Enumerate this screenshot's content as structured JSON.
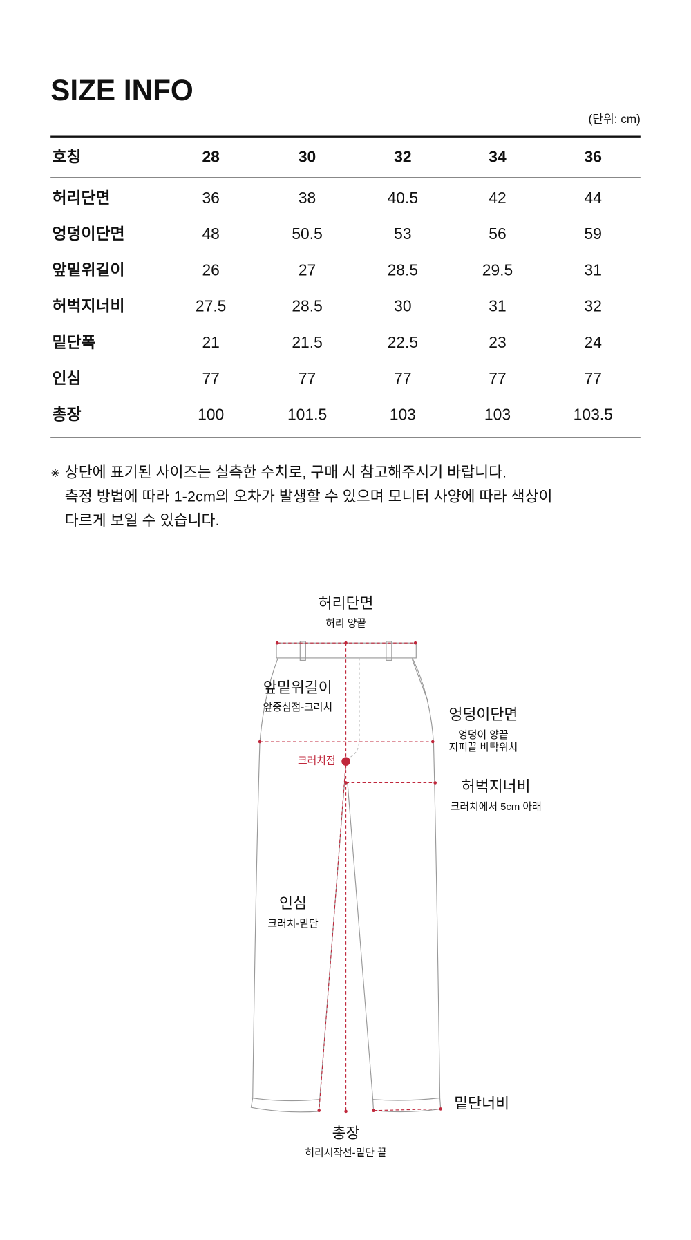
{
  "title": "SIZE INFO",
  "unit": "(단위: cm)",
  "table": {
    "header": [
      "호칭",
      "28",
      "30",
      "32",
      "34",
      "36"
    ],
    "rows": [
      [
        "허리단면",
        36,
        38,
        40.5,
        42,
        44
      ],
      [
        "엉덩이단면",
        48,
        50.5,
        53,
        56,
        59
      ],
      [
        "앞밑위길이",
        26,
        27,
        28.5,
        29.5,
        31
      ],
      [
        "허벅지너비",
        27.5,
        28.5,
        30,
        31,
        32
      ],
      [
        "밑단폭",
        21,
        21.5,
        22.5,
        23,
        24
      ],
      [
        "인심",
        77,
        77,
        77,
        77,
        77
      ],
      [
        "총장",
        100,
        101.5,
        103,
        103,
        103.5
      ]
    ]
  },
  "note": {
    "mark": "※",
    "lines": [
      "상단에 표기된 사이즈는 실측한 수치로, 구매 시 참고해주시기 바랍니다.",
      "측정 방법에 따라 1-2cm의 오차가 발생할 수 있으며 모니터 사양에 따라 색상이",
      "다르게 보일 수 있습니다."
    ]
  },
  "diagram": {
    "waist": {
      "label": "허리단면",
      "sub": "허리 양끝"
    },
    "rise": {
      "label": "앞밑위길이",
      "sub": "앞중심점-크러치"
    },
    "hip": {
      "label": "엉덩이단면",
      "sub": [
        "엉덩이 양끝",
        "지퍼끝 바탁위치"
      ]
    },
    "crotch": "크러치점",
    "thigh": {
      "label": "허벅지너비",
      "sub": "크러치에서 5cm 아래"
    },
    "inseam": {
      "label": "인심",
      "sub": "크러치-밑단"
    },
    "hem": {
      "label": "밑단너비"
    },
    "total": {
      "label": "총장",
      "sub": "허리시작선-밑단 끝"
    }
  }
}
